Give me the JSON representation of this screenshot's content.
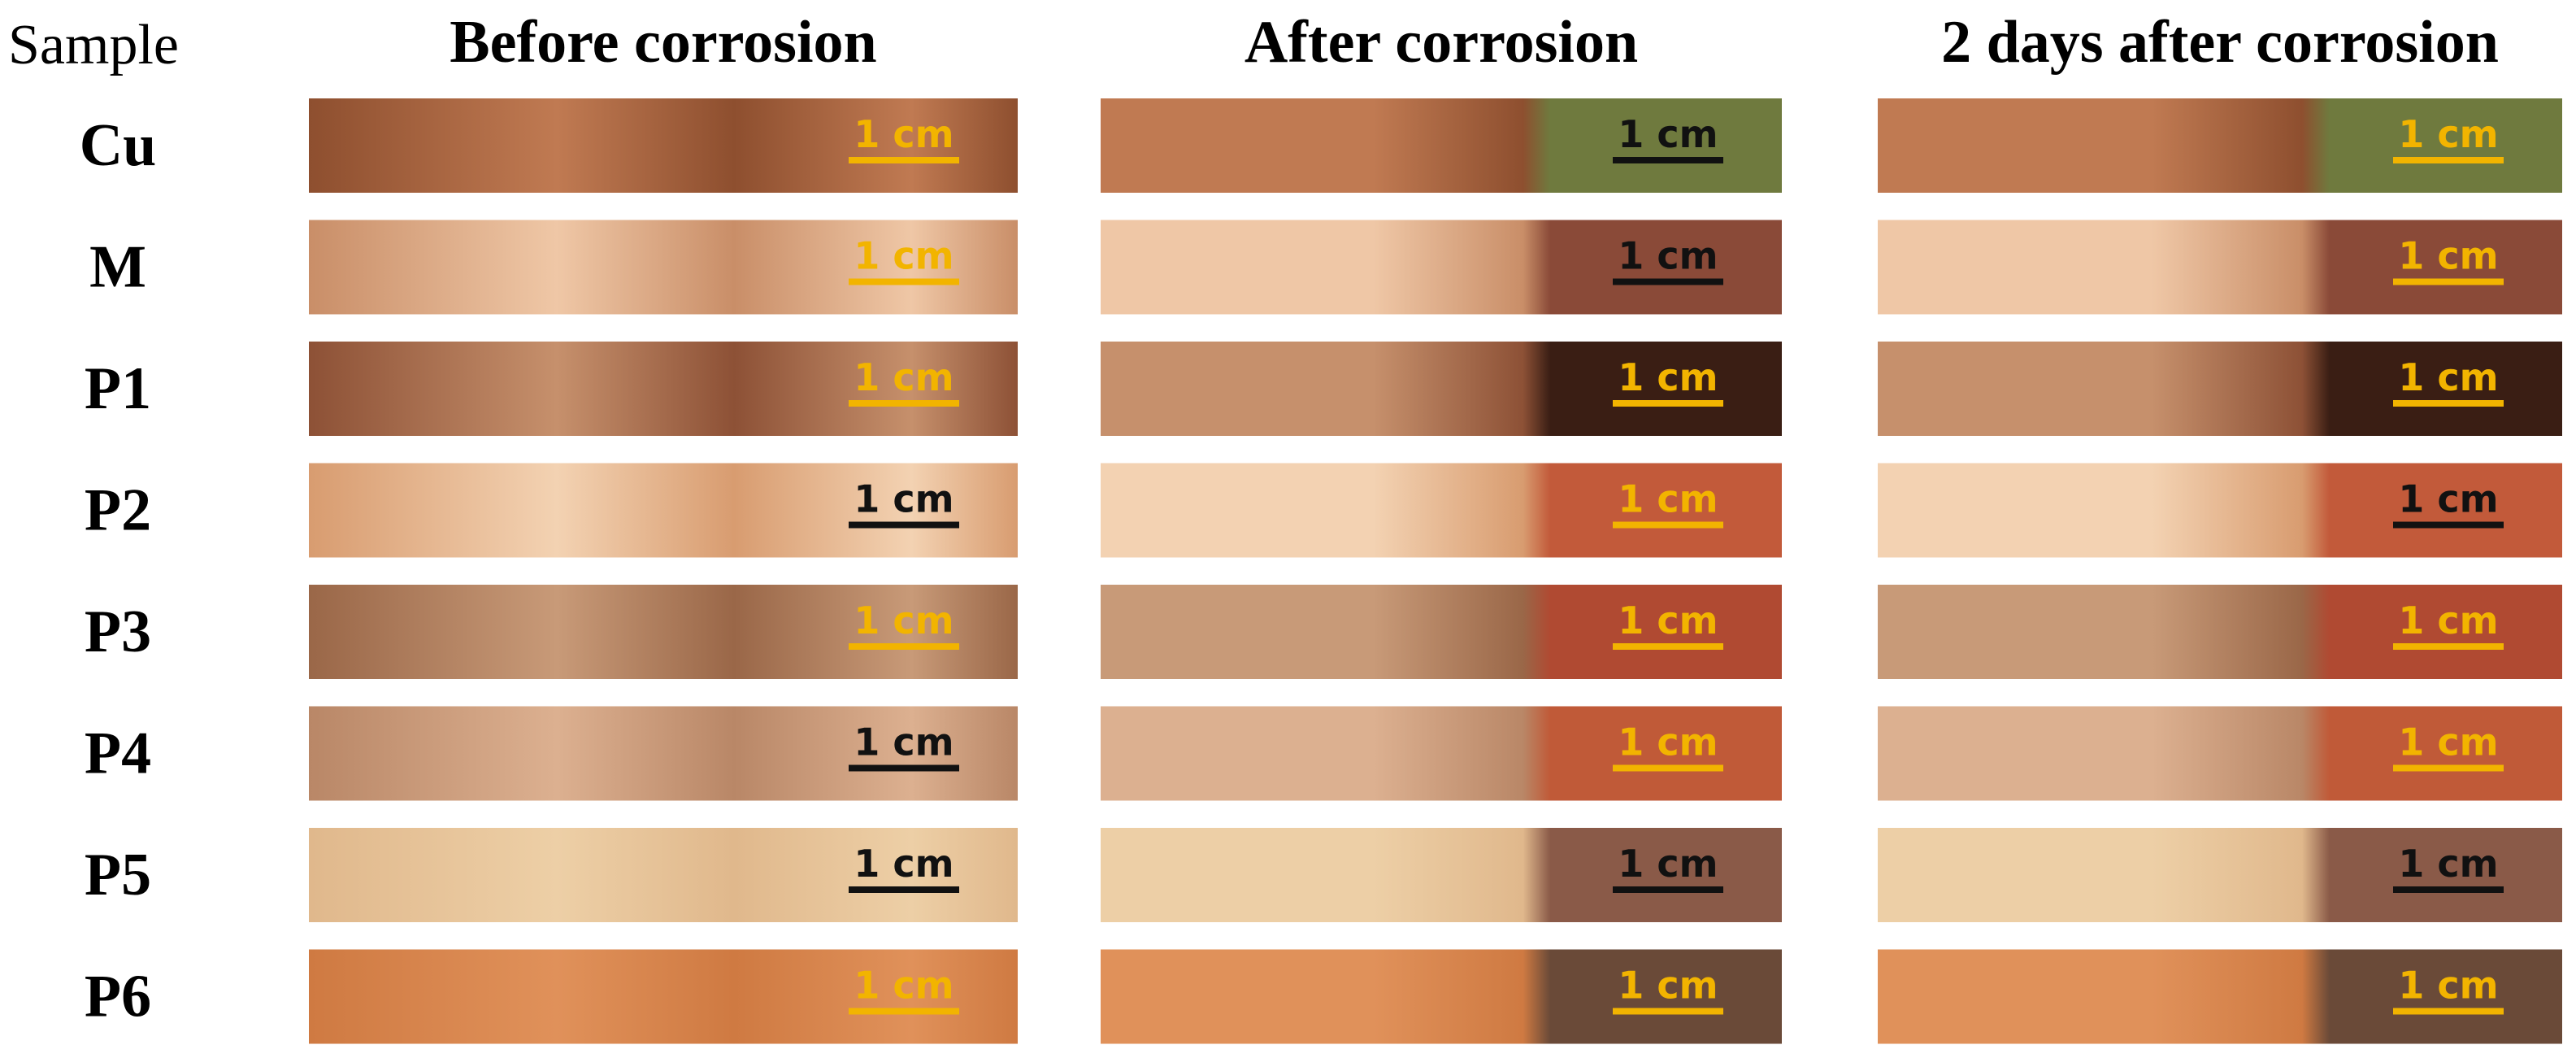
{
  "header": {
    "sample": "Sample",
    "columns": [
      "Before corrosion",
      "After corrosion",
      "2 days after corrosion"
    ]
  },
  "rows": [
    {
      "label": "Cu",
      "cells": [
        {
          "scale": "1 cm",
          "scale_color": "#f2b400"
        },
        {
          "scale": "1 cm",
          "scale_color": "#111111"
        },
        {
          "scale": "1 cm",
          "scale_color": "#f2b400"
        }
      ]
    },
    {
      "label": "M",
      "cells": [
        {
          "scale": "1 cm",
          "scale_color": "#f2b400"
        },
        {
          "scale": "1 cm",
          "scale_color": "#111111"
        },
        {
          "scale": "1 cm",
          "scale_color": "#f2b400"
        }
      ]
    },
    {
      "label": "P1",
      "cells": [
        {
          "scale": "1 cm",
          "scale_color": "#f2b400"
        },
        {
          "scale": "1 cm",
          "scale_color": "#f2b400"
        },
        {
          "scale": "1 cm",
          "scale_color": "#f2b400"
        }
      ]
    },
    {
      "label": "P2",
      "cells": [
        {
          "scale": "1 cm",
          "scale_color": "#111111"
        },
        {
          "scale": "1 cm",
          "scale_color": "#f2b400"
        },
        {
          "scale": "1 cm",
          "scale_color": "#111111"
        }
      ]
    },
    {
      "label": "P3",
      "cells": [
        {
          "scale": "1 cm",
          "scale_color": "#f2b400"
        },
        {
          "scale": "1 cm",
          "scale_color": "#f2b400"
        },
        {
          "scale": "1 cm",
          "scale_color": "#f2b400"
        }
      ]
    },
    {
      "label": "P4",
      "cells": [
        {
          "scale": "1 cm",
          "scale_color": "#111111"
        },
        {
          "scale": "1 cm",
          "scale_color": "#f2b400"
        },
        {
          "scale": "1 cm",
          "scale_color": "#f2b400"
        }
      ]
    },
    {
      "label": "P5",
      "cells": [
        {
          "scale": "1 cm",
          "scale_color": "#111111"
        },
        {
          "scale": "1 cm",
          "scale_color": "#111111"
        },
        {
          "scale": "1 cm",
          "scale_color": "#111111"
        }
      ]
    },
    {
      "label": "P6",
      "cells": [
        {
          "scale": "1 cm",
          "scale_color": "#f2b400"
        },
        {
          "scale": "1 cm",
          "scale_color": "#f2b400"
        },
        {
          "scale": "1 cm",
          "scale_color": "#f2b400"
        }
      ]
    }
  ]
}
